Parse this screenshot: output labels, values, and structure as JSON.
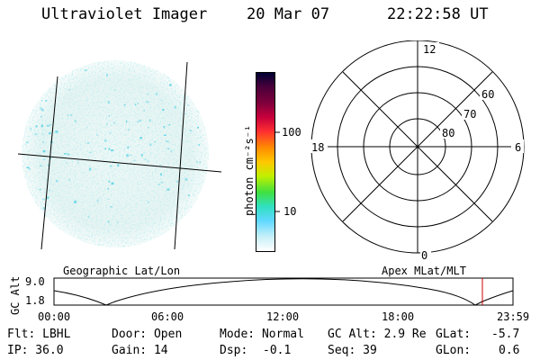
{
  "header": {
    "title": "Ultraviolet Imager",
    "date": "20 Mar 07",
    "time": "22:22:58 UT"
  },
  "colorbar": {
    "unit_label": "photon cm⁻²s⁻¹",
    "ticks": [
      "100",
      "10"
    ],
    "colors": [
      "#000033",
      "#4a003a",
      "#80003c",
      "#c8003c",
      "#ff3030",
      "#ff8c00",
      "#ffc800",
      "#c0f000",
      "#40e040",
      "#30e0c0",
      "#60d8ff",
      "#c8f0f8",
      "#ffffff"
    ]
  },
  "polar_plot": {
    "mlt_labels": {
      "top": "12",
      "right": "6",
      "bottom": "0",
      "left": "18"
    },
    "lat_labels": [
      "60",
      "70",
      "80"
    ]
  },
  "orbit_panel": {
    "y_label": "GC Alt",
    "y_ticks": [
      "9.0",
      "1.8"
    ],
    "left_label": "Geographic Lat/Lon",
    "right_label": "Apex MLat/MLT",
    "x_ticks": [
      "00:00",
      "06:00",
      "12:00",
      "18:00",
      "23:59"
    ],
    "marker_color": "#cc0000"
  },
  "status": {
    "row1": {
      "flt": "Flt: LBHL",
      "door": "Door: Open",
      "mode": "Mode: Normal",
      "gc_alt": "GC Alt: 2.9 Re",
      "glat_label": "GLat:",
      "glat_value": "-5.7"
    },
    "row2": {
      "ip": "IP: 36.0",
      "gain": "Gain: 14",
      "dsp_label": "Dsp:",
      "dsp_value": "-0.1",
      "seq": "Seq: 39",
      "glon_label": "GLon:",
      "glon_value": "0.6"
    }
  }
}
